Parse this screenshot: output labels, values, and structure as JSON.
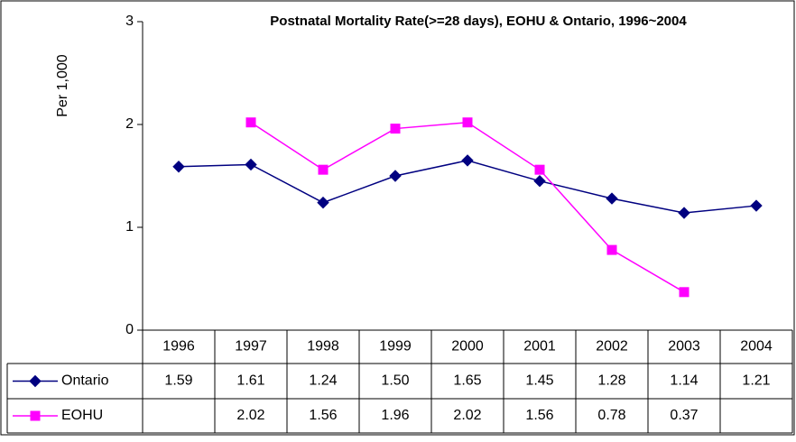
{
  "chart_data": {
    "type": "line",
    "title": "Postnatal Mortality Rate(>=28 days), EOHU & Ontario, 1996~2004",
    "y_label": "Per 1,000",
    "categories": [
      "1996",
      "1997",
      "1998",
      "1999",
      "2000",
      "2001",
      "2002",
      "2003",
      "2004"
    ],
    "series": [
      {
        "name": "Ontario",
        "color": "#000080",
        "marker": "diamond",
        "values": [
          1.59,
          1.61,
          1.24,
          1.5,
          1.65,
          1.45,
          1.28,
          1.14,
          1.21
        ],
        "value_labels": [
          "1.59",
          "1.61",
          "1.24",
          "1.50",
          "1.65",
          "1.45",
          "1.28",
          "1.14",
          "1.21"
        ]
      },
      {
        "name": "EOHU",
        "color": "#ff00ff",
        "marker": "square",
        "values": [
          null,
          2.02,
          1.56,
          1.96,
          2.02,
          1.56,
          0.78,
          0.37,
          null
        ],
        "value_labels": [
          null,
          "2.02",
          "1.56",
          "1.96",
          "2.02",
          "1.56",
          "0.78",
          "0.37",
          null
        ]
      }
    ],
    "ylim": [
      0,
      3
    ],
    "yticks": [
      0,
      1,
      2,
      3
    ],
    "grid": false
  }
}
